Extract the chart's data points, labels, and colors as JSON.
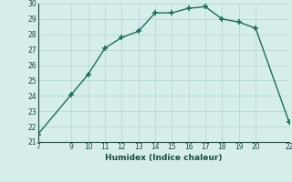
{
  "x": [
    7,
    9,
    10,
    11,
    12,
    13,
    14,
    15,
    16,
    17,
    18,
    19,
    20,
    22
  ],
  "y": [
    21.5,
    24.1,
    25.4,
    27.1,
    27.8,
    28.2,
    29.4,
    29.4,
    29.7,
    29.8,
    29.0,
    28.8,
    28.4,
    22.3
  ],
  "xlim": [
    7,
    22
  ],
  "ylim": [
    21,
    30
  ],
  "xticks": [
    7,
    9,
    10,
    11,
    12,
    13,
    14,
    15,
    16,
    17,
    18,
    19,
    20,
    22
  ],
  "yticks": [
    21,
    22,
    23,
    24,
    25,
    26,
    27,
    28,
    29,
    30
  ],
  "xlabel": "Humidex (Indice chaleur)",
  "line_color": "#1e6b5e",
  "bg_color": "#d6eeea",
  "grid_color": "#b8d8d4",
  "text_color": "#1a4a44",
  "marker": "+",
  "marker_size": 4,
  "marker_lw": 1.2,
  "line_width": 1.0,
  "linestyle": "-"
}
